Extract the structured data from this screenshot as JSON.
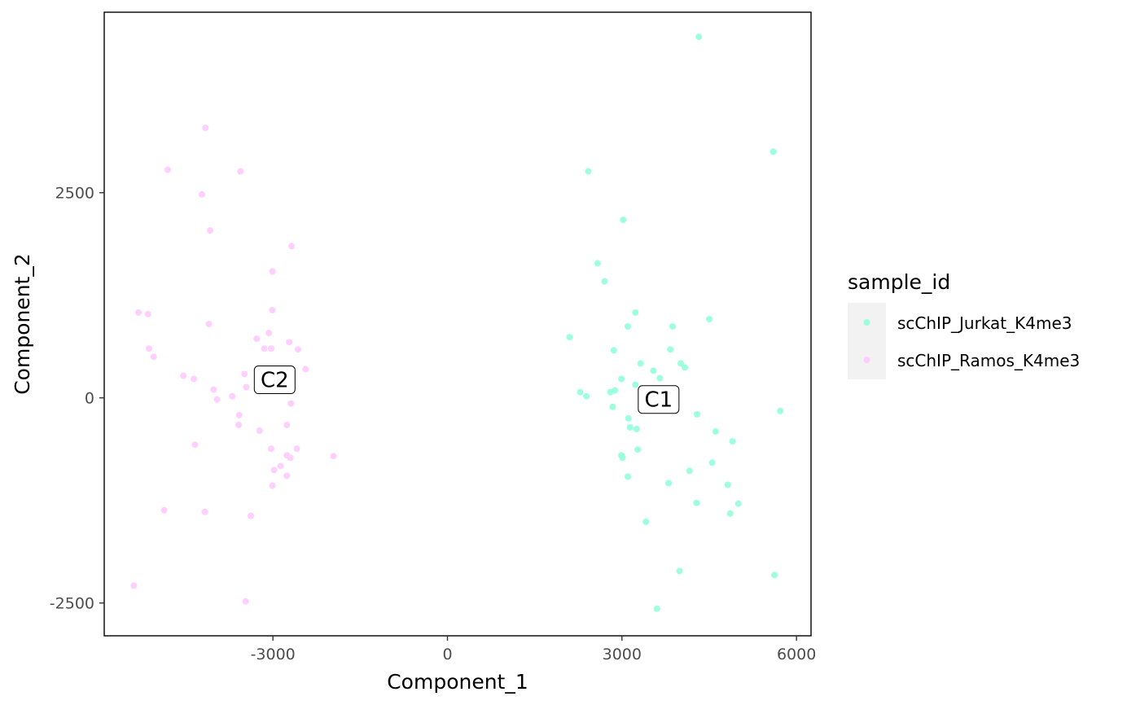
{
  "chart_data": {
    "type": "scatter",
    "xlabel": "Component_1",
    "ylabel": "Component_2",
    "xlim": [
      -5900,
      6250
    ],
    "ylim": [
      -2900,
      4700
    ],
    "xticks": [
      -3000,
      0,
      3000,
      6000
    ],
    "xtick_labels": [
      "-3000",
      "0",
      "3000",
      "6000"
    ],
    "yticks": [
      -2500,
      0,
      2500
    ],
    "ytick_labels": [
      "-2500",
      "0",
      "2500"
    ],
    "grid": false,
    "legend": {
      "title": "sample_id",
      "placement": "right",
      "entries": [
        "scChIP_Jurkat_K4me3",
        "scChIP_Ramos_K4me3"
      ]
    },
    "series": [
      {
        "name": "scChIP_Jurkat_K4me3",
        "color": "#99FFDD",
        "points": [
          [
            4320,
            4400
          ],
          [
            5600,
            3000
          ],
          [
            2420,
            2760
          ],
          [
            3020,
            2170
          ],
          [
            2580,
            1640
          ],
          [
            2700,
            1420
          ],
          [
            4500,
            960
          ],
          [
            3230,
            1040
          ],
          [
            3100,
            870
          ],
          [
            3870,
            870
          ],
          [
            2100,
            740
          ],
          [
            2860,
            580
          ],
          [
            3830,
            590
          ],
          [
            3320,
            420
          ],
          [
            4010,
            420
          ],
          [
            4080,
            370
          ],
          [
            3540,
            330
          ],
          [
            3650,
            240
          ],
          [
            2990,
            230
          ],
          [
            3230,
            160
          ],
          [
            2280,
            70
          ],
          [
            2880,
            90
          ],
          [
            2800,
            70
          ],
          [
            2390,
            20
          ],
          [
            2840,
            -110
          ],
          [
            3110,
            -250
          ],
          [
            3140,
            -360
          ],
          [
            3250,
            -380
          ],
          [
            4290,
            -200
          ],
          [
            4610,
            -410
          ],
          [
            5720,
            -160
          ],
          [
            4900,
            -530
          ],
          [
            3270,
            -630
          ],
          [
            2990,
            -700
          ],
          [
            3010,
            -730
          ],
          [
            4550,
            -790
          ],
          [
            4160,
            -890
          ],
          [
            3100,
            -960
          ],
          [
            3800,
            -1040
          ],
          [
            4820,
            -1060
          ],
          [
            5000,
            -1290
          ],
          [
            4280,
            -1280
          ],
          [
            4860,
            -1410
          ],
          [
            3410,
            -1510
          ],
          [
            3990,
            -2110
          ],
          [
            5620,
            -2160
          ],
          [
            3600,
            -2570
          ]
        ]
      },
      {
        "name": "scChIP_Ramos_K4me3",
        "color": "#FFCCFF",
        "points": [
          [
            -4160,
            3290
          ],
          [
            -4810,
            2780
          ],
          [
            -3560,
            2760
          ],
          [
            -4220,
            2480
          ],
          [
            -4080,
            2040
          ],
          [
            -2680,
            1850
          ],
          [
            -3010,
            1540
          ],
          [
            -3010,
            1070
          ],
          [
            -5310,
            1040
          ],
          [
            -5150,
            1020
          ],
          [
            -4100,
            900
          ],
          [
            -3070,
            790
          ],
          [
            -3280,
            720
          ],
          [
            -2720,
            680
          ],
          [
            -5130,
            600
          ],
          [
            -3150,
            600
          ],
          [
            -3030,
            600
          ],
          [
            -2570,
            590
          ],
          [
            -5050,
            500
          ],
          [
            -2440,
            350
          ],
          [
            -3490,
            290
          ],
          [
            -4540,
            270
          ],
          [
            -4360,
            230
          ],
          [
            -4020,
            100
          ],
          [
            -3460,
            130
          ],
          [
            -3700,
            20
          ],
          [
            -3960,
            -20
          ],
          [
            -2690,
            -70
          ],
          [
            -3580,
            -210
          ],
          [
            -3590,
            -330
          ],
          [
            -2760,
            -330
          ],
          [
            -3230,
            -400
          ],
          [
            -4340,
            -570
          ],
          [
            -3030,
            -620
          ],
          [
            -2590,
            -620
          ],
          [
            -2760,
            -700
          ],
          [
            -2700,
            -730
          ],
          [
            -1960,
            -710
          ],
          [
            -2870,
            -830
          ],
          [
            -2980,
            -880
          ],
          [
            -2760,
            -950
          ],
          [
            -3010,
            -1070
          ],
          [
            -4870,
            -1370
          ],
          [
            -4170,
            -1390
          ],
          [
            -3380,
            -1440
          ],
          [
            -5390,
            -2290
          ],
          [
            -3470,
            -2480
          ]
        ]
      }
    ],
    "cluster_labels": [
      {
        "text": "C1",
        "x": 3630,
        "y": -20
      },
      {
        "text": "C2",
        "x": -2970,
        "y": 220
      }
    ]
  }
}
